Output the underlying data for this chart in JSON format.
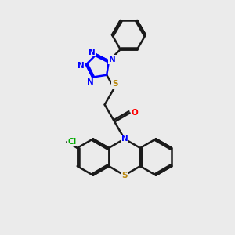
{
  "bg_color": "#ebebeb",
  "bond_color": "#1a1a1a",
  "N_color": "#0000ff",
  "S_color": "#b8860b",
  "O_color": "#ff0000",
  "Cl_color": "#00aa00",
  "line_width": 1.8,
  "figsize": [
    3.0,
    3.0
  ],
  "dpi": 100,
  "xlim": [
    0,
    10
  ],
  "ylim": [
    0,
    10
  ]
}
